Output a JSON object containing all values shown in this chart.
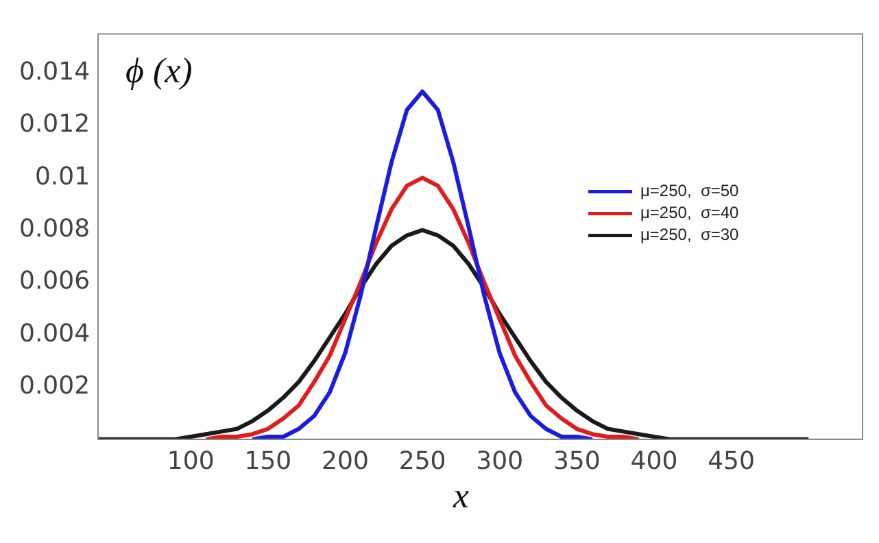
{
  "chart_data": {
    "type": "line",
    "xlabel": "x",
    "ylabel": "ϕ (x)",
    "x": [
      40,
      50,
      60,
      70,
      80,
      90,
      100,
      110,
      120,
      130,
      140,
      150,
      160,
      170,
      180,
      190,
      200,
      210,
      220,
      230,
      240,
      250,
      260,
      270,
      280,
      290,
      300,
      310,
      320,
      330,
      340,
      350,
      360,
      370,
      380,
      390,
      400,
      410,
      420,
      430,
      440,
      450,
      460,
      470,
      480,
      490,
      500
    ],
    "series": [
      {
        "name": "μ=250,  σ=50",
        "color": "#1c1ce0",
        "values": [
          null,
          null,
          null,
          null,
          null,
          null,
          null,
          null,
          null,
          null,
          0,
          0.0001,
          0.0001,
          0.0004,
          0.0009,
          0.0018,
          0.0033,
          0.0055,
          0.0081,
          0.0106,
          0.0126,
          0.0133,
          0.0126,
          0.0106,
          0.0081,
          0.0055,
          0.0033,
          0.0018,
          0.0009,
          0.0004,
          0.0001,
          0.0001,
          0,
          null,
          null,
          null,
          null,
          null,
          null,
          null,
          null,
          null,
          null,
          null,
          null,
          null,
          null
        ]
      },
      {
        "name": "μ=250,  σ=40",
        "color": "#e01c1c",
        "values": [
          null,
          null,
          null,
          null,
          null,
          null,
          null,
          0,
          0.0001,
          0.0001,
          0.0002,
          0.0004,
          0.0008,
          0.0013,
          0.0022,
          0.0032,
          0.0046,
          0.006,
          0.0075,
          0.0088,
          0.0097,
          0.01,
          0.0097,
          0.0088,
          0.0075,
          0.006,
          0.0046,
          0.0032,
          0.0022,
          0.0013,
          0.0008,
          0.0004,
          0.0002,
          0.0001,
          0.0001,
          0,
          null,
          null,
          null,
          null,
          null,
          null,
          null,
          null,
          null,
          null,
          null
        ]
      },
      {
        "name": "μ=250,  σ=30",
        "color": "#1a1a1a",
        "values": [
          0,
          0,
          0,
          0,
          0,
          0,
          0.0001,
          0.0002,
          0.0003,
          0.0004,
          0.0007,
          0.0011,
          0.0016,
          0.0022,
          0.003,
          0.0039,
          0.0048,
          0.0058,
          0.0067,
          0.0074,
          0.0078,
          0.008,
          0.0078,
          0.0074,
          0.0067,
          0.0058,
          0.0048,
          0.0039,
          0.003,
          0.0022,
          0.0016,
          0.0011,
          0.0007,
          0.0004,
          0.0003,
          0.0002,
          0.0001,
          0,
          0,
          0,
          0,
          0,
          0,
          0,
          0,
          0,
          0
        ]
      }
    ],
    "xlim": [
      40,
      535
    ],
    "xticks": [
      100,
      150,
      200,
      250,
      300,
      350,
      400,
      450
    ],
    "ylim": [
      0,
      0.0155
    ],
    "yticks": [
      0.002,
      0.004,
      0.006,
      0.008,
      0.01,
      0.012,
      0.014
    ],
    "grid": false,
    "legend": "top right",
    "marker": "none",
    "line_style": "solid"
  }
}
